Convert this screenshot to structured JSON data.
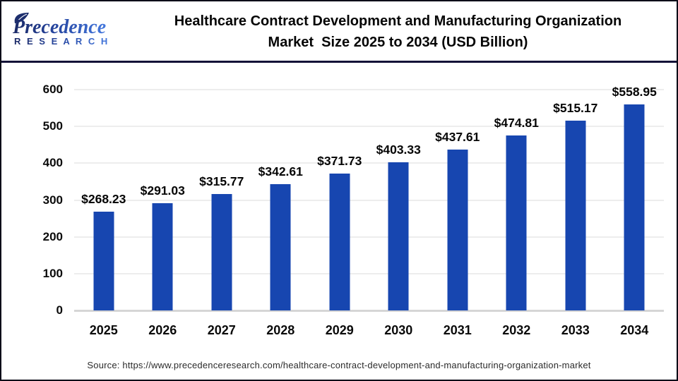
{
  "header": {
    "logo": {
      "brand": "Precedence",
      "sub": "R E S E A R C H"
    },
    "title_line1": "Healthcare Contract Development and Manufacturing Organization",
    "title_line2": "Market  Size 2025 to 2034 (USD Billion)"
  },
  "chart_data": {
    "type": "bar",
    "title": "Healthcare Contract Development and Manufacturing Organization Market Size 2025 to 2034 (USD Billion)",
    "unit": "USD Billion",
    "categories": [
      "2025",
      "2026",
      "2027",
      "2028",
      "2029",
      "2030",
      "2031",
      "2032",
      "2033",
      "2034"
    ],
    "values": [
      268.23,
      291.03,
      315.77,
      342.61,
      371.73,
      403.33,
      437.61,
      474.81,
      515.17,
      558.95
    ],
    "labels": [
      "$268.23",
      "$291.03",
      "$315.77",
      "$342.61",
      "$371.73",
      "$403.33",
      "$437.61",
      "$474.81",
      "$515.17",
      "$558.95"
    ],
    "xlabel": "",
    "ylabel": "",
    "ylim": [
      0,
      600
    ],
    "yticks": [
      0,
      100,
      200,
      300,
      400,
      500,
      600
    ],
    "grid": true,
    "legend_position": "none",
    "bar_color": "#1746b0",
    "gridline_color": "#ededed",
    "baseline_color": "#d6d6d6"
  },
  "footer": {
    "source": "Source: https://www.precedenceresearch.com/healthcare-contract-development-and-manufacturing-organization-market"
  }
}
